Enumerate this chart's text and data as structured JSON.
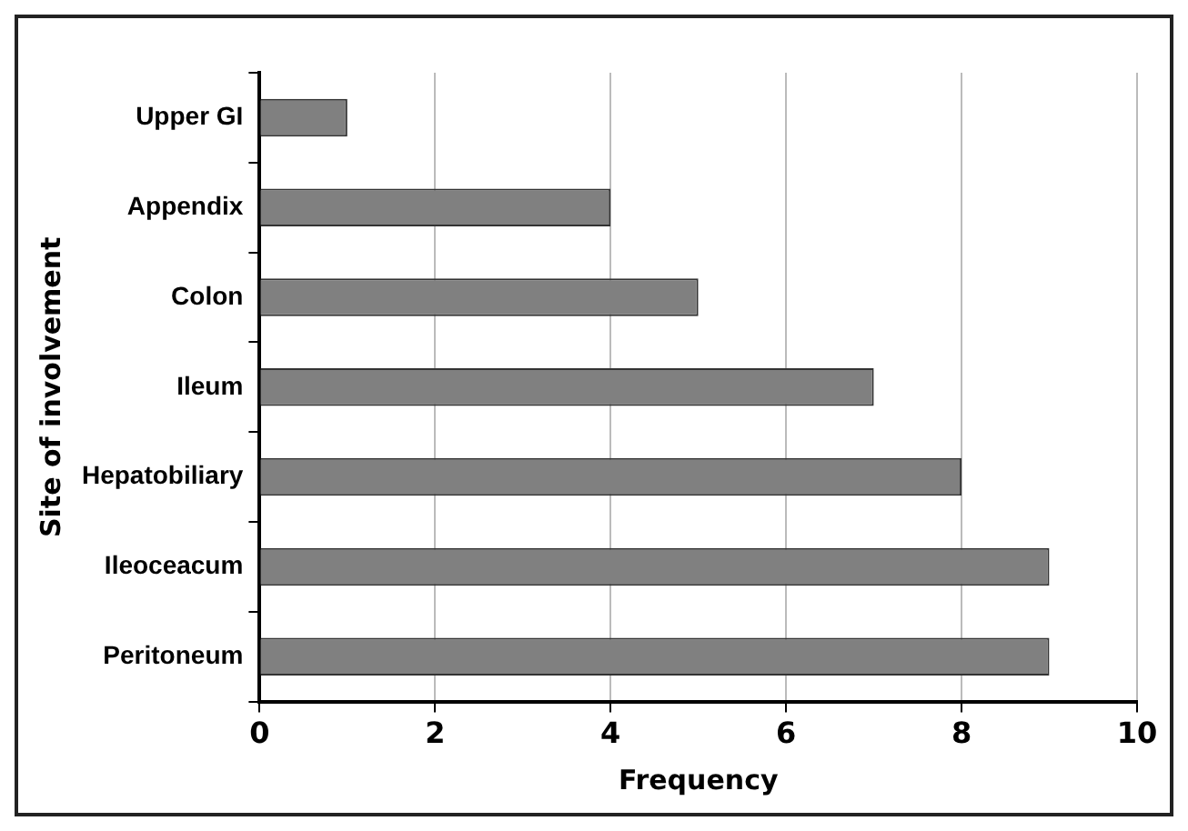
{
  "chart_data": {
    "type": "bar",
    "orientation": "horizontal",
    "xlabel": "Frequency",
    "ylabel": "Site of involvement",
    "categories": [
      "Upper GI",
      "Appendix",
      "Colon",
      "Ileum",
      "Hepatobiliary",
      "Ileoceacum",
      "Peritoneum"
    ],
    "values": [
      1,
      4,
      5,
      7,
      8,
      9,
      9
    ],
    "color": "#808080",
    "xlim": [
      0,
      10
    ],
    "xticks": [
      0,
      2,
      4,
      6,
      8,
      10
    ],
    "grid": "x",
    "legend": false
  }
}
